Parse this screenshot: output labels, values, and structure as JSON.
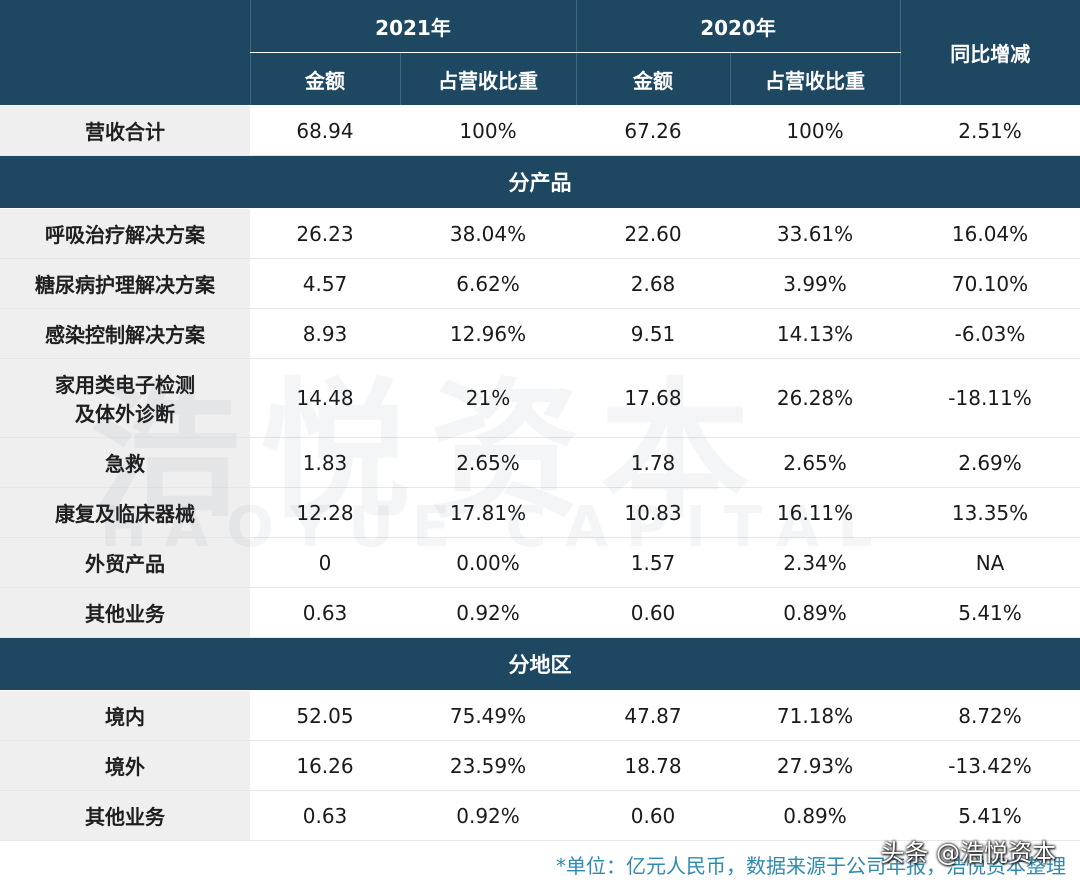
{
  "header": {
    "year_a": "2021年",
    "year_b": "2020年",
    "yoy": "同比增减",
    "amount": "金额",
    "share": "占营收比重"
  },
  "total": {
    "label": "营收合计",
    "a_amount": "68.94",
    "a_share": "100%",
    "b_amount": "67.26",
    "b_share": "100%",
    "yoy": "2.51%"
  },
  "section_product": {
    "title": "分产品"
  },
  "products": [
    {
      "label": "呼吸治疗解决方案",
      "a_amount": "26.23",
      "a_share": "38.04%",
      "b_amount": "22.60",
      "b_share": "33.61%",
      "yoy": "16.04%"
    },
    {
      "label": "糖尿病护理解决方案",
      "a_amount": "4.57",
      "a_share": "6.62%",
      "b_amount": "2.68",
      "b_share": "3.99%",
      "yoy": "70.10%"
    },
    {
      "label": "感染控制解决方案",
      "a_amount": "8.93",
      "a_share": "12.96%",
      "b_amount": "9.51",
      "b_share": "14.13%",
      "yoy": "-6.03%"
    },
    {
      "label_line1": "家用类电子检测",
      "label_line2": "及体外诊断",
      "a_amount": "14.48",
      "a_share": "21%",
      "b_amount": "17.68",
      "b_share": "26.28%",
      "yoy": "-18.11%"
    },
    {
      "label": "急救",
      "a_amount": "1.83",
      "a_share": "2.65%",
      "b_amount": "1.78",
      "b_share": "2.65%",
      "yoy": "2.69%"
    },
    {
      "label": "康复及临床器械",
      "a_amount": "12.28",
      "a_share": "17.81%",
      "b_amount": "10.83",
      "b_share": "16.11%",
      "yoy": "13.35%"
    },
    {
      "label": "外贸产品",
      "a_amount": "0",
      "a_share": "0.00%",
      "b_amount": "1.57",
      "b_share": "2.34%",
      "yoy": "NA"
    },
    {
      "label": "其他业务",
      "a_amount": "0.63",
      "a_share": "0.92%",
      "b_amount": "0.60",
      "b_share": "0.89%",
      "yoy": "5.41%"
    }
  ],
  "section_region": {
    "title": "分地区"
  },
  "regions": [
    {
      "label": "境内",
      "a_amount": "52.05",
      "a_share": "75.49%",
      "b_amount": "47.87",
      "b_share": "71.18%",
      "yoy": "8.72%"
    },
    {
      "label": "境外",
      "a_amount": "16.26",
      "a_share": "23.59%",
      "b_amount": "18.78",
      "b_share": "27.93%",
      "yoy": "-13.42%"
    },
    {
      "label": "其他业务",
      "a_amount": "0.63",
      "a_share": "0.92%",
      "b_amount": "0.60",
      "b_share": "0.89%",
      "yoy": "5.41%"
    }
  ],
  "watermark": {
    "main": "浩悦资本",
    "sub": "HAOYUE CAPITAL"
  },
  "footnote": "*单位：亿元人民币，数据来源于公司年报，浩悦资本整理",
  "toutiao": "头条 @浩悦资本",
  "colors": {
    "header_bg": "#1e4762",
    "label_bg": "#efefef",
    "footnote": "#2d8ab0"
  }
}
